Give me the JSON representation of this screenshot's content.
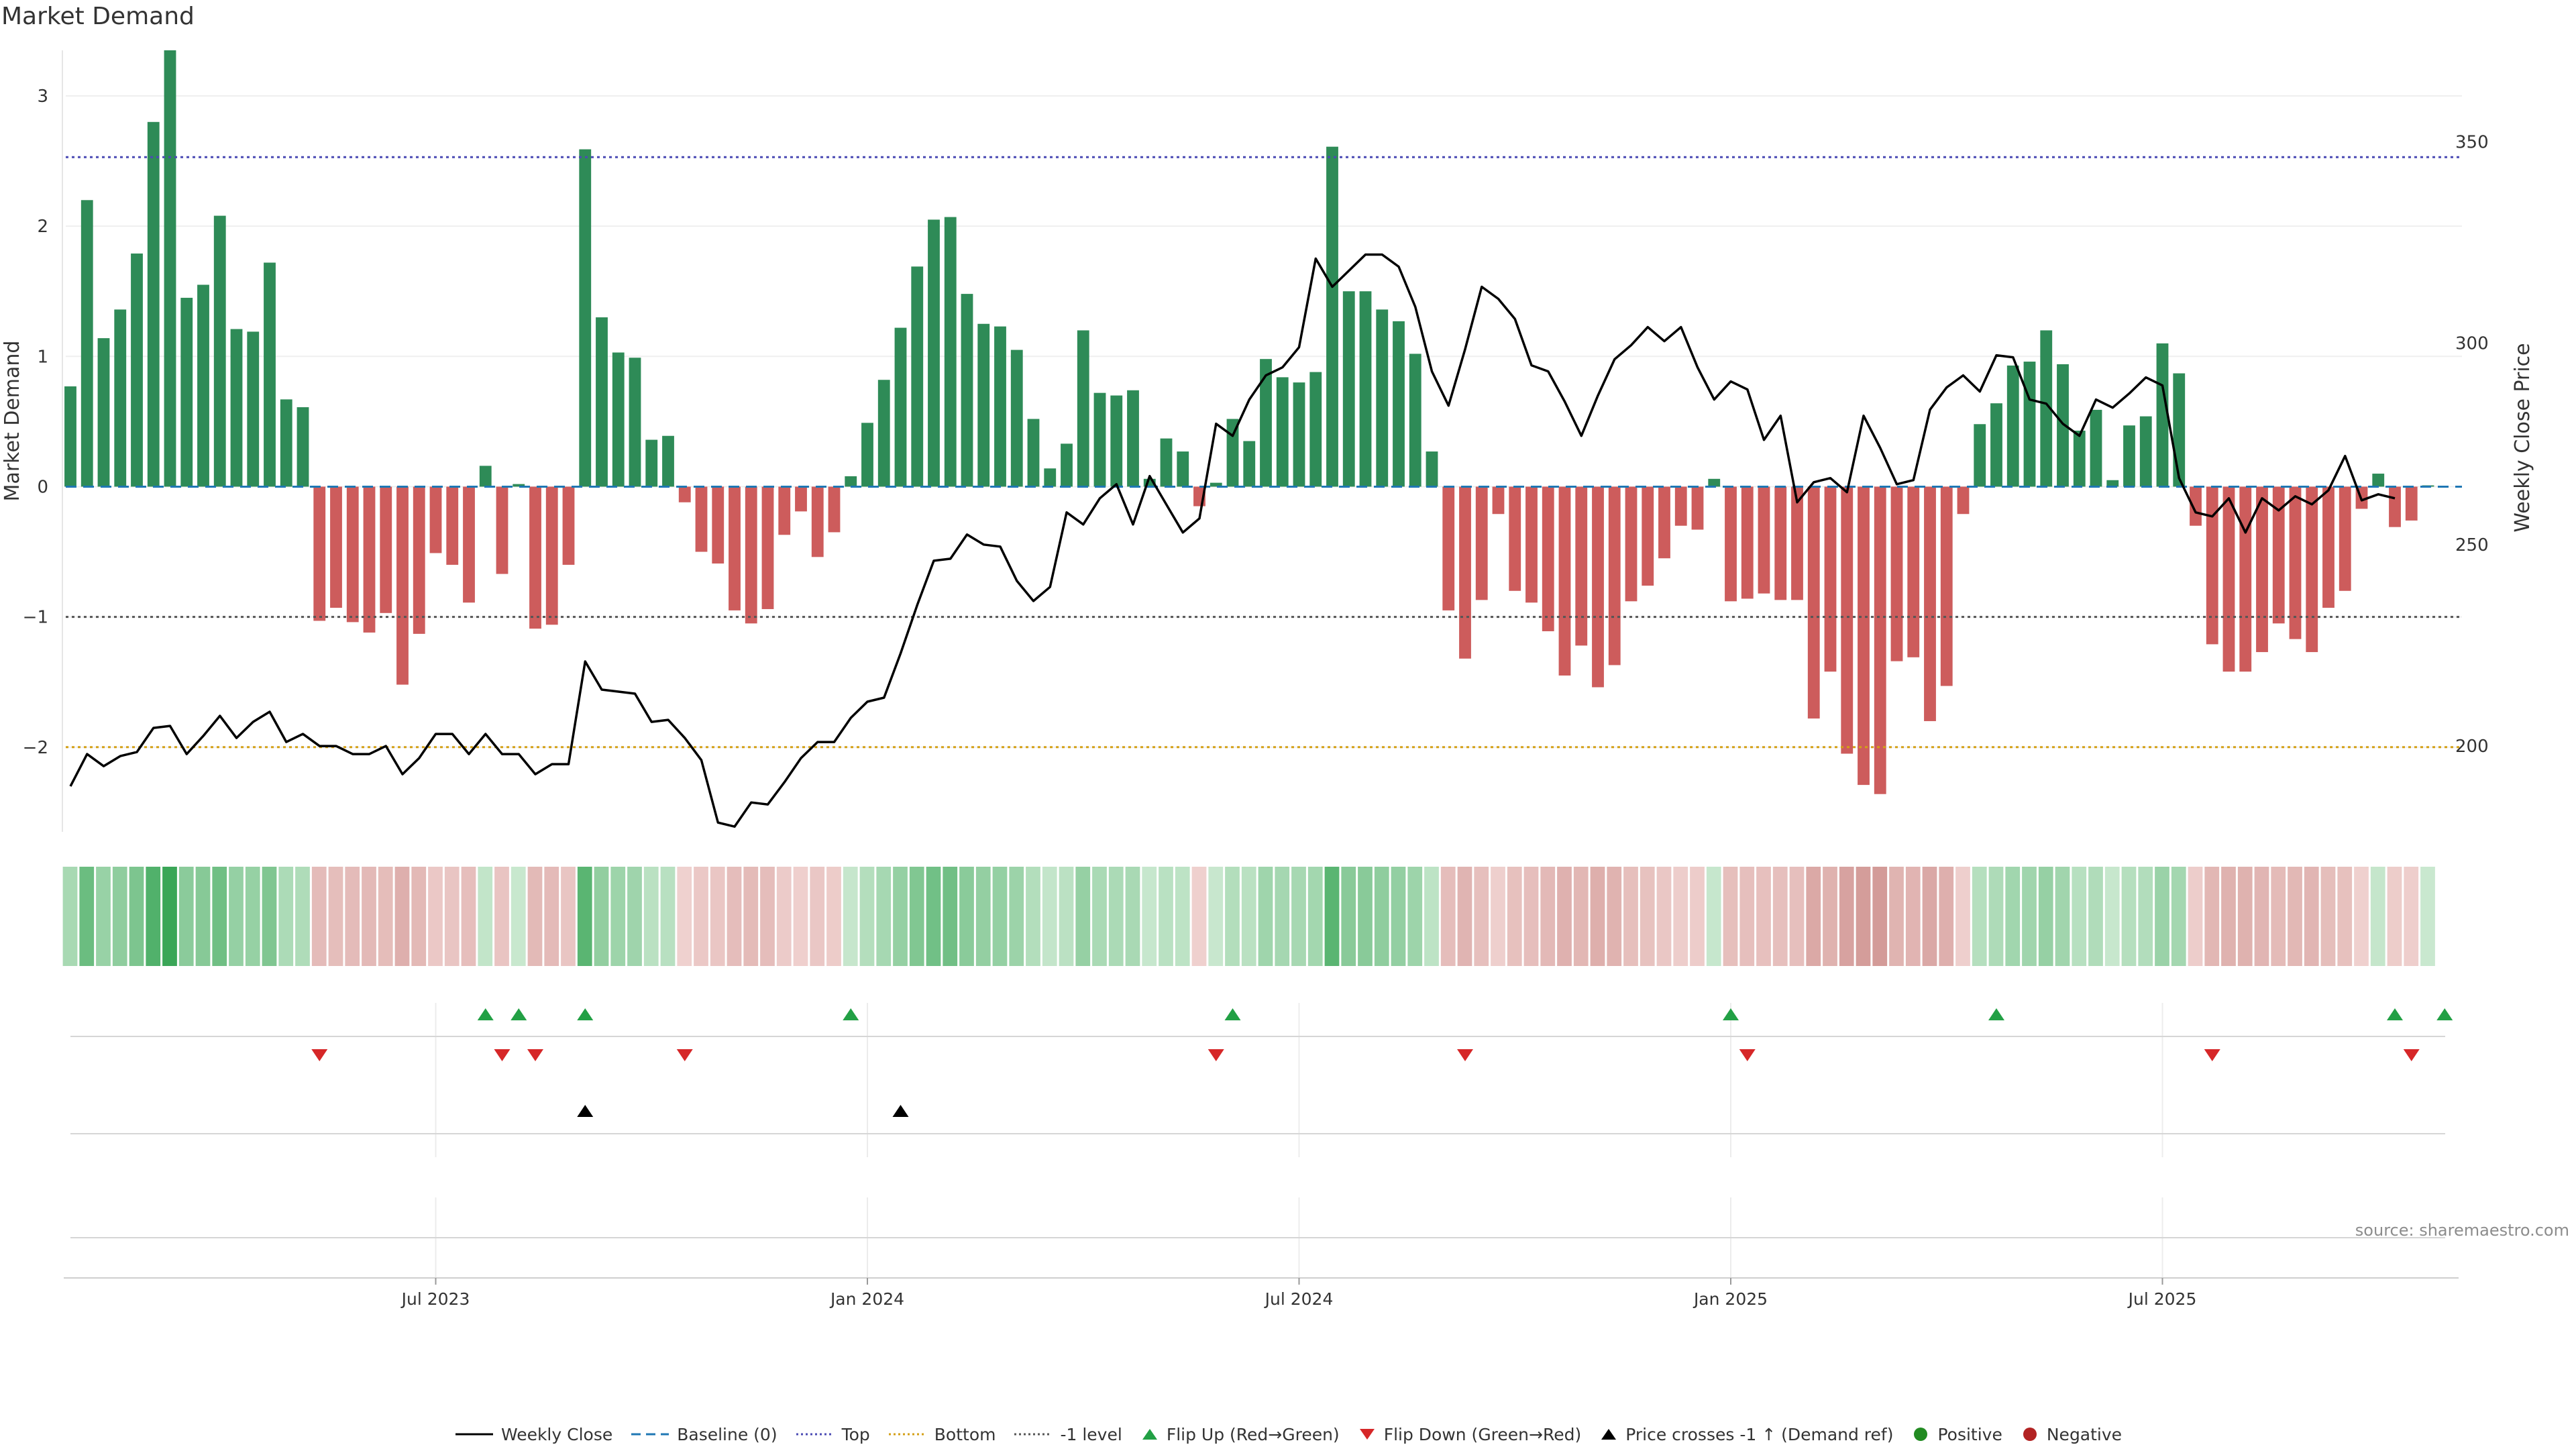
{
  "title": "Market Demand",
  "source": "source: sharemaestro.com",
  "colors": {
    "positive": "#2e8b57",
    "negative": "#cd5c5c",
    "price": "#000000",
    "baseline": "#1f77b4",
    "top": "#4b4bb4",
    "bottom": "#d4a017",
    "minus1": "#555555",
    "flip_up": "#22a045",
    "flip_down": "#d62728",
    "cross": "#000000",
    "dot_pos": "#228b22",
    "dot_neg": "#b22222"
  },
  "chart_data": {
    "type": "bar",
    "title": "Market Demand",
    "ylabel": "Market Demand",
    "y2label": "Weekly Close Price",
    "ylim": [
      -2.65,
      3.35
    ],
    "y2lim": [
      178.7,
      372.7
    ],
    "yticks": [
      -2,
      -1,
      0,
      1,
      2,
      3
    ],
    "ytick_labels": [
      "−2",
      "−1",
      "0",
      "1",
      "2",
      "3"
    ],
    "y2ticks": [
      200,
      250,
      300,
      350
    ],
    "y2tick_labels": [
      "200",
      "250",
      "300",
      "350"
    ],
    "xticks": [
      {
        "week": 22,
        "label": "Jul 2023"
      },
      {
        "week": 48,
        "label": "Jan 2024"
      },
      {
        "week": 74,
        "label": "Jul 2024"
      },
      {
        "week": 100,
        "label": "Jan 2025"
      },
      {
        "week": 126,
        "label": "Jul 2025"
      }
    ],
    "reference_lines": {
      "top": 2.53,
      "bottom": -2.0,
      "minus1": -1.0,
      "baseline": 0
    },
    "demand": [
      0.77,
      2.2,
      1.14,
      1.36,
      1.79,
      2.8,
      3.35,
      1.45,
      1.55,
      2.08,
      1.21,
      1.19,
      1.72,
      0.67,
      0.61,
      -1.03,
      -0.93,
      -1.04,
      -1.12,
      -0.97,
      -1.52,
      -1.13,
      -0.51,
      -0.6,
      -0.89,
      0.16,
      -0.67,
      0.02,
      -1.09,
      -1.06,
      -0.6,
      2.59,
      1.3,
      1.03,
      0.99,
      0.36,
      0.39,
      -0.12,
      -0.5,
      -0.59,
      -0.95,
      -1.05,
      -0.94,
      -0.37,
      -0.19,
      -0.54,
      -0.35,
      0.08,
      0.49,
      0.82,
      1.22,
      1.69,
      2.05,
      2.07,
      1.48,
      1.25,
      1.23,
      1.05,
      0.52,
      0.14,
      0.33,
      1.2,
      0.72,
      0.7,
      0.74,
      0.06,
      0.37,
      0.27,
      -0.15,
      0.03,
      0.52,
      0.35,
      0.98,
      0.84,
      0.8,
      0.88,
      2.61,
      1.5,
      1.5,
      1.36,
      1.27,
      1.02,
      0.27,
      -0.95,
      -1.32,
      -0.87,
      -0.21,
      -0.8,
      -0.89,
      -1.11,
      -1.45,
      -1.22,
      -1.54,
      -1.37,
      -0.88,
      -0.76,
      -0.55,
      -0.3,
      -0.33,
      0.06,
      -0.88,
      -0.86,
      -0.82,
      -0.87,
      -0.87,
      -1.78,
      -1.42,
      -2.05,
      -2.29,
      -2.36,
      -1.34,
      -1.31,
      -1.8,
      -1.53,
      -0.21,
      0.48,
      0.64,
      0.93,
      0.96,
      1.2,
      0.94,
      0.43,
      0.59,
      0.05,
      0.47,
      0.54,
      1.1,
      0.87,
      -0.3,
      -1.21,
      -1.42,
      -1.42,
      -1.27,
      -1.05,
      -1.17,
      -1.27,
      -0.93,
      -0.8,
      -0.17,
      0.1,
      -0.31,
      -0.26,
      0.01
    ],
    "price": [
      190,
      198,
      195,
      197.5,
      198.5,
      204.5,
      205,
      198,
      202.5,
      207.5,
      202,
      206,
      208.5,
      201,
      203,
      200,
      200,
      198,
      198,
      200,
      193,
      197,
      203,
      203,
      198,
      203,
      198,
      198,
      193,
      195.5,
      195.5,
      221,
      214,
      213.5,
      213,
      206,
      206.5,
      202,
      196.5,
      181,
      180,
      186,
      185.5,
      191,
      197,
      201,
      201,
      207,
      211,
      212,
      223,
      235,
      246,
      246.5,
      252.5,
      250,
      249.5,
      241,
      236,
      239.5,
      258,
      255,
      261.5,
      265,
      255,
      267,
      260,
      253,
      256.5,
      280,
      277,
      286,
      292,
      294,
      299,
      321,
      314,
      318,
      322,
      322,
      319,
      309,
      293,
      284.5,
      298.5,
      314,
      311,
      306,
      294.5,
      293,
      285.5,
      277,
      287,
      296,
      299.5,
      304,
      300.5,
      304,
      294,
      286,
      290.5,
      288.5,
      276,
      282,
      260.5,
      265.5,
      266.5,
      263,
      282,
      274,
      265,
      266,
      283.5,
      289,
      292,
      288,
      297,
      296.5,
      286,
      285,
      280,
      277,
      286,
      284,
      287.5,
      291.5,
      289.5,
      266.5,
      258,
      257,
      261.5,
      253,
      261.5,
      258.5,
      262,
      260,
      263.5,
      272,
      261,
      262.5,
      261.5
    ]
  },
  "signals": {
    "flip_up": [
      25,
      27,
      31,
      47,
      70,
      100,
      116,
      140,
      143
    ],
    "flip_down": [
      15,
      26,
      28,
      37,
      69,
      84,
      101,
      129,
      141
    ],
    "price_cross_minus1": [
      31,
      50
    ]
  },
  "legend": [
    {
      "key": "weekly_close",
      "label": "Weekly Close"
    },
    {
      "key": "baseline",
      "label": "Baseline (0)"
    },
    {
      "key": "top",
      "label": "Top"
    },
    {
      "key": "bottom",
      "label": "Bottom"
    },
    {
      "key": "minus1",
      "label": "-1 level"
    },
    {
      "key": "flip_up",
      "label": "Flip Up (Red→Green)"
    },
    {
      "key": "flip_down",
      "label": "Flip Down (Green→Red)"
    },
    {
      "key": "cross",
      "label": "Price crosses -1 ↑ (Demand ref)"
    },
    {
      "key": "positive",
      "label": "Positive"
    },
    {
      "key": "negative",
      "label": "Negative"
    }
  ]
}
